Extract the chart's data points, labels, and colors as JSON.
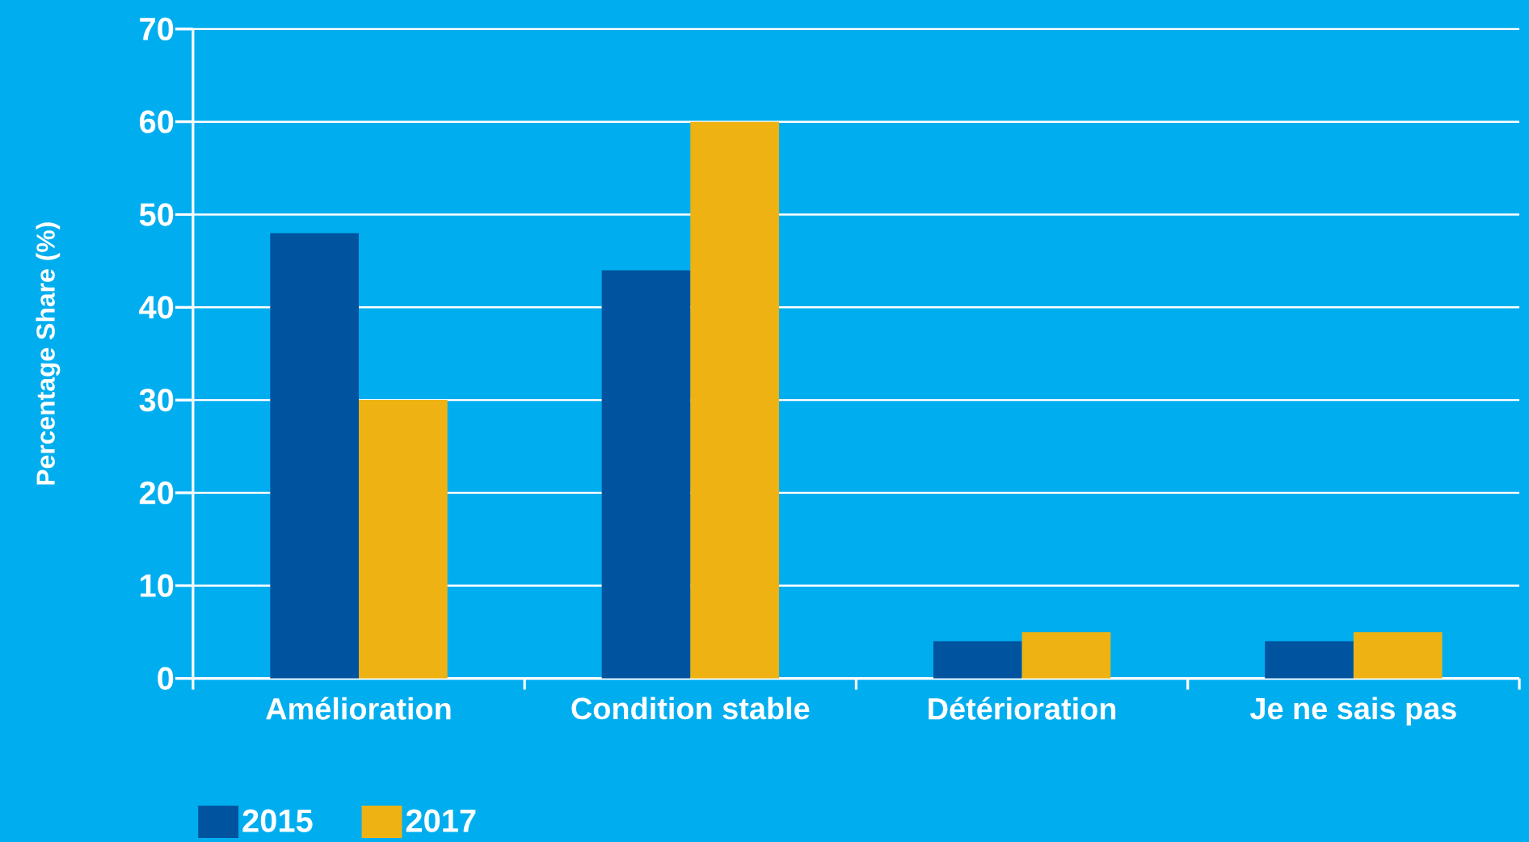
{
  "chart_data": {
    "type": "bar",
    "ylabel": "Percentage Share (%)",
    "categories": [
      "Amélioration",
      "Condition stable",
      "Détérioration",
      "Je ne sais pas"
    ],
    "series": [
      {
        "name": "2015",
        "color": "#00549f",
        "values": [
          48,
          44,
          4,
          4
        ]
      },
      {
        "name": "2017",
        "color": "#eeb213",
        "values": [
          30,
          60,
          5,
          5
        ]
      }
    ],
    "ylim": [
      0,
      70
    ],
    "yticks": [
      0,
      10,
      20,
      30,
      40,
      50,
      60,
      70
    ],
    "grid": "y",
    "legend": "bottom left"
  }
}
